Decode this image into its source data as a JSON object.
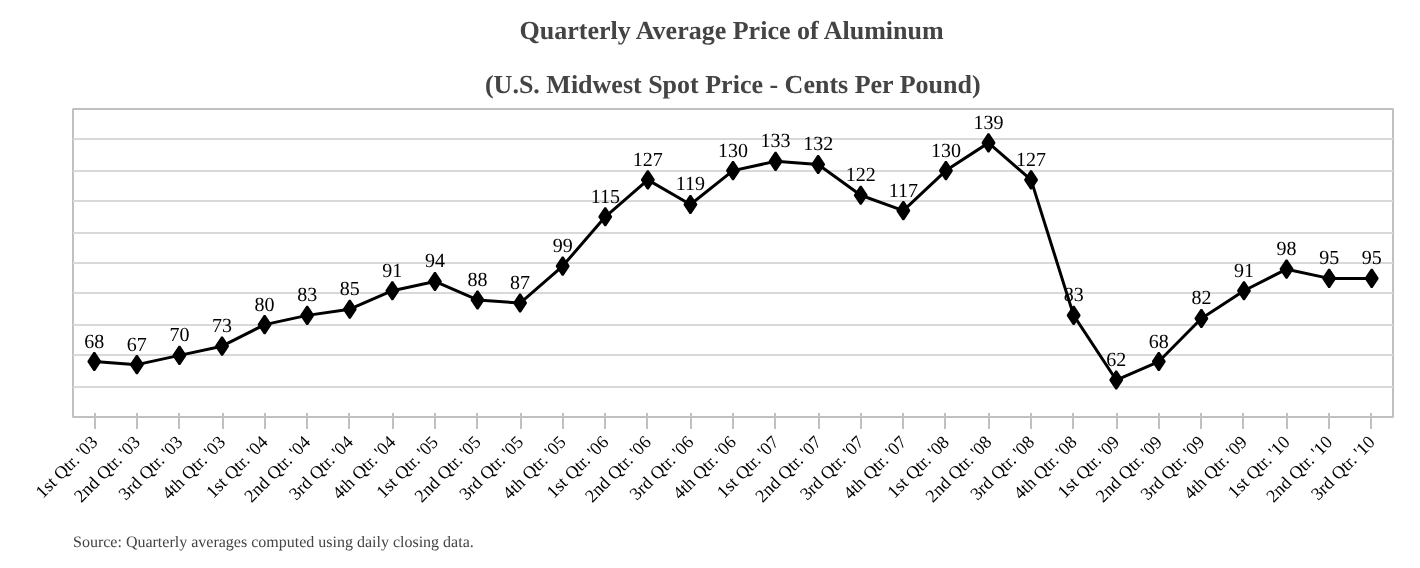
{
  "chart_data": {
    "type": "line",
    "title": "Quarterly Average Price of Aluminum",
    "subtitle": "(U.S. Midwest Spot Price - Cents Per Pound)",
    "categories": [
      "1st Qtr. '03",
      "2nd Qtr. '03",
      "3rd Qtr. '03",
      "4th Qtr. '03",
      "1st Qtr. '04",
      "2nd Qtr. '04",
      "3rd Qtr. '04",
      "4th Qtr. '04",
      "1st Qtr. '05",
      "2nd Qtr. '05",
      "3rd Qtr. '05",
      "4th Qtr. '05",
      "1st Qtr. '06",
      "2nd Qtr. '06",
      "3rd Qtr. '06",
      "4th Qtr. '06",
      "1st Qtr. '07",
      "2nd Qtr. '07",
      "3rd Qtr. '07",
      "4th Qtr. '07",
      "1st Qtr. '08",
      "2nd Qtr. '08",
      "3rd Qtr. '08",
      "4th Qtr. '08",
      "1st Qtr. '09",
      "2nd Qtr. '09",
      "3rd Qtr. '09",
      "4th Qtr. '09",
      "1st Qtr. '10",
      "2nd Qtr. '10",
      "3rd Qtr. '10"
    ],
    "series": [
      {
        "color": "#000000",
        "values": [
          68,
          67,
          70,
          73,
          80,
          83,
          85,
          91,
          94,
          88,
          87,
          99,
          115,
          127,
          119,
          130,
          133,
          132,
          122,
          117,
          130,
          139,
          127,
          83,
          62,
          68,
          82,
          91,
          98,
          95,
          95
        ]
      }
    ],
    "ylim": [
      50,
      150
    ],
    "yticks": [
      {
        "value": 50,
        "label": null
      },
      {
        "value": 60,
        "label": null
      },
      {
        "value": 70,
        "label": null
      },
      {
        "value": 80,
        "label": null
      },
      {
        "value": 90,
        "label": null
      },
      {
        "value": 100,
        "label": null
      },
      {
        "value": 110,
        "label": null
      },
      {
        "value": 120,
        "label": null
      },
      {
        "value": 130,
        "label": null
      },
      {
        "value": 140,
        "label": null
      },
      {
        "value": 150,
        "label": null
      }
    ],
    "tick_labels": "x",
    "grid": "y",
    "marker": "diamond",
    "line_style": "solid",
    "data_labels": true,
    "annotations": [
      "Source:  Quarterly averages computed using daily closing data."
    ]
  }
}
